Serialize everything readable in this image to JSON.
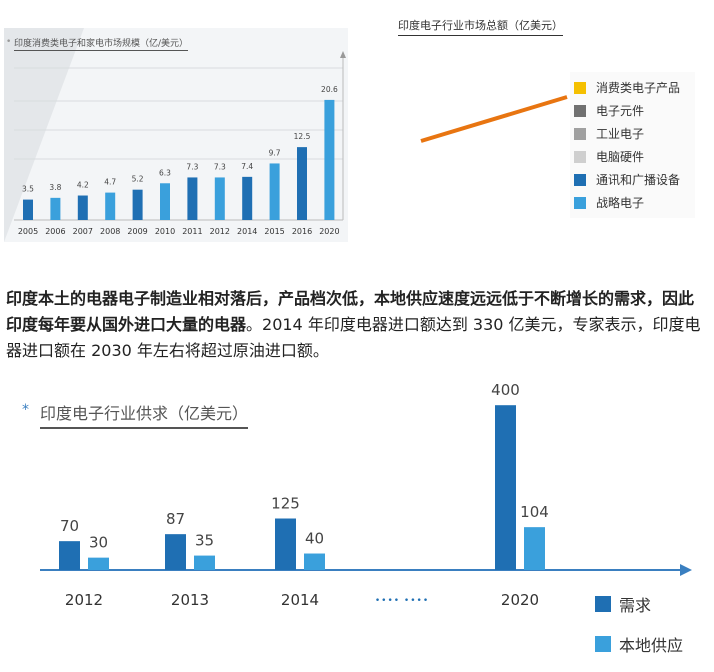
{
  "chart_data": [
    {
      "type": "bar",
      "title": "印度消费类电子和家电市场规模（亿/美元）",
      "categories": [
        "2005",
        "2006",
        "2007",
        "2008",
        "2009",
        "2010",
        "2011",
        "2012",
        "2014",
        "2015",
        "2016",
        "2020"
      ],
      "values": [
        3.5,
        3.8,
        4.2,
        4.7,
        5.2,
        6.3,
        7.3,
        7.3,
        7.4,
        9.7,
        12.5,
        20.6
      ],
      "value_labels": [
        "3.5",
        "3.8",
        "4.2",
        "4.7",
        "5.2",
        "6.3",
        "7.3",
        "7.3",
        "7.4",
        "9.7",
        "12.5",
        "20.6"
      ],
      "colors": [
        "#1f6fb3",
        "#3aa0dc",
        "#1f6fb3",
        "#3aa0dc",
        "#1f6fb3",
        "#3aa0dc",
        "#1f6fb3",
        "#3aa0dc",
        "#1f6fb3",
        "#3aa0dc",
        "#1f6fb3",
        "#3aa0dc"
      ],
      "grid": true,
      "ylim": [
        0,
        22
      ]
    },
    {
      "type": "line",
      "title": "印度电子行业市场总额（亿美元）",
      "legend": [
        {
          "name": "消费类电子产品",
          "color": "#f5c000"
        },
        {
          "name": "电子元件",
          "color": "#707070"
        },
        {
          "name": "工业电子",
          "color": "#a0a0a0"
        },
        {
          "name": "电脑硬件",
          "color": "#cfcfcf"
        },
        {
          "name": "通讯和广播设备",
          "color": "#1f6fb3"
        },
        {
          "name": "战略电子",
          "color": "#3aa0dc"
        }
      ],
      "line_color": "#e87511",
      "legend_position": "right"
    },
    {
      "type": "bar",
      "title": "印度电子行业供求（亿美元）",
      "categories": [
        "2012",
        "2013",
        "2014",
        "2020"
      ],
      "ellipsis": "••••  ••••",
      "series": [
        {
          "name": "需求",
          "color": "#1f6fb3",
          "values": [
            70,
            87,
            125,
            400
          ]
        },
        {
          "name": "本地供应",
          "color": "#3aa0dc",
          "values": [
            30,
            35,
            40,
            104
          ]
        }
      ],
      "ylim": [
        0,
        400
      ],
      "legend_position": "bottom-right"
    }
  ],
  "paragraph": {
    "bold": "印度本土的电器电子制造业相对落后，产品档次低，本地供应速度远远低于不断增长的需求，因此印度每年要从国外进口大量的电器",
    "normal": "。2014 年印度电器进口额达到 330 亿美元，专家表示，印度电器进口额在 2030 年左右将超过原油进口额。"
  },
  "bullets": {
    "c1": "•",
    "c3": "*"
  }
}
